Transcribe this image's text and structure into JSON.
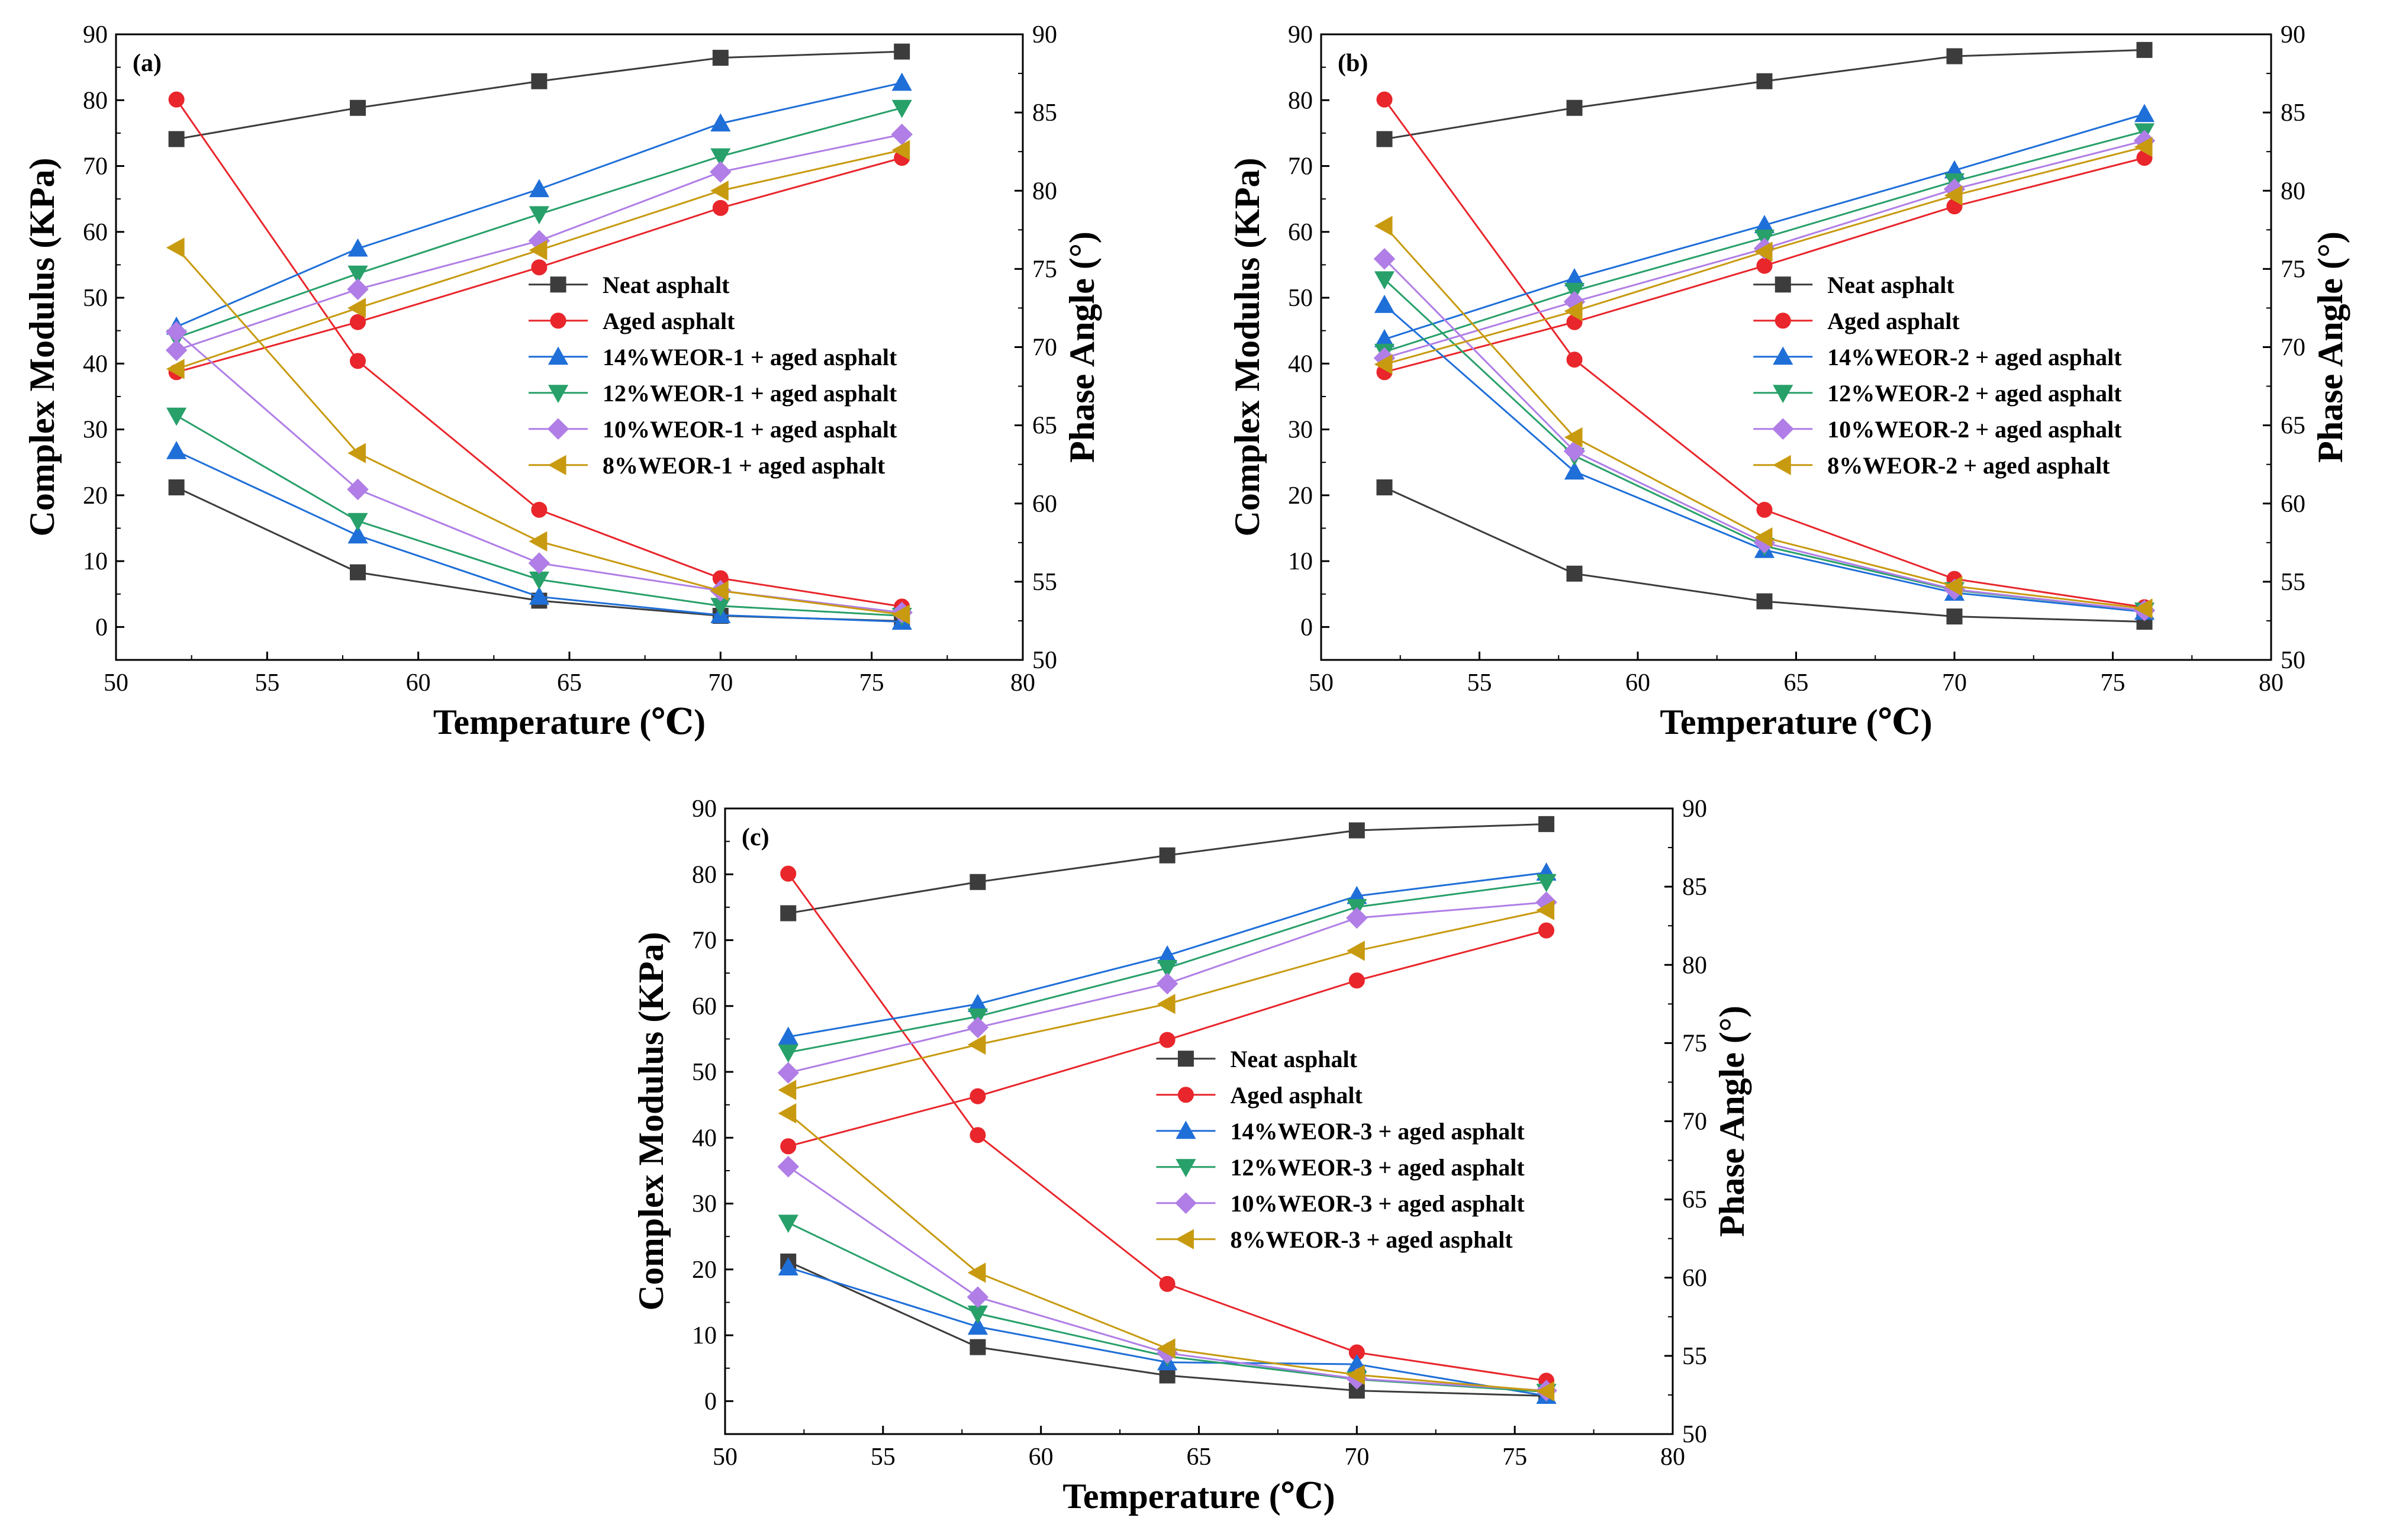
{
  "chart_data": [
    {
      "type": "line",
      "panel_label": "(a)",
      "xlabel": "Temperature (℃)",
      "ylabel": "Complex Modulus (KPa)",
      "y2label": "Phase Angle (°)",
      "xlim": [
        50,
        80
      ],
      "ylim": [
        -5,
        90
      ],
      "y2lim": [
        50,
        90
      ],
      "xticks": [
        "50",
        "55",
        "60",
        "65",
        "70",
        "75",
        "80"
      ],
      "yticks": [
        "0",
        "10",
        "20",
        "30",
        "40",
        "50",
        "60",
        "70",
        "80",
        "90"
      ],
      "y2ticks": [
        "50",
        "55",
        "60",
        "65",
        "70",
        "75",
        "80",
        "85",
        "90"
      ],
      "legend_position": "center-right",
      "x": [
        52,
        58,
        64,
        70,
        76
      ],
      "series": [
        {
          "name": "Neat asphalt",
          "color": "#3c3c3c",
          "marker": "square",
          "modulus": [
            21.2,
            8.3,
            4.0,
            1.7,
            0.9
          ],
          "phase": [
            83.3,
            85.3,
            87.0,
            88.5,
            88.9
          ]
        },
        {
          "name": "Aged asphalt",
          "color": "#e8262b",
          "marker": "circle",
          "modulus": [
            80.1,
            40.4,
            17.8,
            7.4,
            3.1
          ],
          "phase": [
            68.4,
            71.6,
            75.1,
            78.9,
            82.1
          ]
        },
        {
          "name": "14%WEOR-1 + aged asphalt",
          "color": "#1f6fd8",
          "marker": "triangle-up",
          "modulus": [
            26.7,
            13.9,
            4.6,
            1.8,
            0.8
          ],
          "phase": [
            71.3,
            76.3,
            80.1,
            84.3,
            86.9
          ]
        },
        {
          "name": "12%WEOR-1 + aged asphalt",
          "color": "#28a06a",
          "marker": "triangle-down",
          "modulus": [
            32.1,
            16.1,
            7.2,
            3.2,
            1.7
          ],
          "phase": [
            70.6,
            74.7,
            78.5,
            82.2,
            85.3
          ]
        },
        {
          "name": "10%WEOR-1 + aged asphalt",
          "color": "#b07ee6",
          "marker": "diamond",
          "modulus": [
            44.8,
            20.9,
            9.7,
            5.5,
            2.2
          ],
          "phase": [
            69.8,
            73.7,
            76.8,
            81.2,
            83.6
          ]
        },
        {
          "name": "8%WEOR-1 + aged asphalt",
          "color": "#c89a10",
          "marker": "triangle-left",
          "modulus": [
            57.6,
            26.4,
            13.0,
            5.5,
            1.9
          ],
          "phase": [
            68.6,
            72.5,
            76.2,
            80.0,
            82.6
          ]
        }
      ]
    },
    {
      "type": "line",
      "panel_label": "(b)",
      "xlabel": "Temperature (℃)",
      "ylabel": "Complex Modulus (KPa)",
      "y2label": "Phase Angle (°)",
      "xlim": [
        50,
        80
      ],
      "ylim": [
        -5,
        90
      ],
      "y2lim": [
        50,
        90
      ],
      "xticks": [
        "50",
        "55",
        "60",
        "65",
        "70",
        "75",
        "80"
      ],
      "yticks": [
        "0",
        "10",
        "20",
        "30",
        "40",
        "50",
        "60",
        "70",
        "80",
        "90"
      ],
      "y2ticks": [
        "50",
        "55",
        "60",
        "65",
        "70",
        "75",
        "80",
        "85",
        "90"
      ],
      "legend_position": "center-right",
      "x": [
        52,
        58,
        64,
        70,
        76
      ],
      "series": [
        {
          "name": "Neat asphalt",
          "color": "#3c3c3c",
          "marker": "square",
          "modulus": [
            21.2,
            8.1,
            3.9,
            1.6,
            0.8
          ],
          "phase": [
            83.3,
            85.3,
            87.0,
            88.6,
            89.0
          ]
        },
        {
          "name": "Aged asphalt",
          "color": "#e8262b",
          "marker": "circle",
          "modulus": [
            80.1,
            40.6,
            17.8,
            7.3,
            3.0
          ],
          "phase": [
            68.4,
            71.6,
            75.2,
            79.0,
            82.1
          ]
        },
        {
          "name": "14%WEOR-2 + aged asphalt",
          "color": "#1f6fd8",
          "marker": "triangle-up",
          "modulus": [
            48.9,
            23.6,
            11.7,
            5.2,
            2.3
          ],
          "phase": [
            70.5,
            74.4,
            77.8,
            81.3,
            84.9
          ]
        },
        {
          "name": "12%WEOR-2 + aged asphalt",
          "color": "#28a06a",
          "marker": "triangle-down",
          "modulus": [
            52.8,
            26.0,
            12.3,
            5.6,
            2.5
          ],
          "phase": [
            69.7,
            73.6,
            77.0,
            80.6,
            83.8
          ]
        },
        {
          "name": "10%WEOR-2 + aged asphalt",
          "color": "#b07ee6",
          "marker": "diamond",
          "modulus": [
            55.9,
            26.7,
            12.8,
            5.7,
            2.5
          ],
          "phase": [
            69.3,
            72.9,
            76.3,
            80.1,
            83.2
          ]
        },
        {
          "name": "8%WEOR-2 + aged asphalt",
          "color": "#c89a10",
          "marker": "triangle-left",
          "modulus": [
            60.9,
            28.8,
            13.6,
            6.2,
            2.8
          ],
          "phase": [
            68.9,
            72.3,
            76.1,
            79.7,
            82.8
          ]
        }
      ]
    },
    {
      "type": "line",
      "panel_label": "(c)",
      "xlabel": "Temperature (℃)",
      "ylabel": "Complex Modulus (KPa)",
      "y2label": "Phase Angle (°)",
      "xlim": [
        50,
        80
      ],
      "ylim": [
        -5,
        90
      ],
      "y2lim": [
        50,
        90
      ],
      "xticks": [
        "50",
        "55",
        "60",
        "65",
        "70",
        "75",
        "80"
      ],
      "yticks": [
        "0",
        "10",
        "20",
        "30",
        "40",
        "50",
        "60",
        "70",
        "80",
        "90"
      ],
      "y2ticks": [
        "50",
        "55",
        "60",
        "65",
        "70",
        "75",
        "80",
        "85",
        "90"
      ],
      "legend_position": "center-right",
      "x": [
        52,
        58,
        64,
        70,
        76
      ],
      "series": [
        {
          "name": "Neat asphalt",
          "color": "#3c3c3c",
          "marker": "square",
          "modulus": [
            21.2,
            8.2,
            3.9,
            1.6,
            0.8
          ],
          "phase": [
            83.3,
            85.3,
            87.0,
            88.6,
            89.0
          ]
        },
        {
          "name": "Aged asphalt",
          "color": "#e8262b",
          "marker": "circle",
          "modulus": [
            80.1,
            40.4,
            17.8,
            7.4,
            3.1
          ],
          "phase": [
            68.4,
            71.6,
            75.2,
            79.0,
            82.2
          ]
        },
        {
          "name": "14%WEOR-3 + aged asphalt",
          "color": "#1f6fd8",
          "marker": "triangle-up",
          "modulus": [
            20.3,
            11.3,
            5.9,
            5.6,
            0.8
          ],
          "phase": [
            75.4,
            77.5,
            80.6,
            84.4,
            85.9
          ]
        },
        {
          "name": "12%WEOR-3 + aged asphalt",
          "color": "#28a06a",
          "marker": "triangle-down",
          "modulus": [
            27.1,
            13.3,
            6.8,
            3.3,
            1.4
          ],
          "phase": [
            74.4,
            76.7,
            79.8,
            83.7,
            85.3
          ]
        },
        {
          "name": "10%WEOR-3 + aged asphalt",
          "color": "#b07ee6",
          "marker": "diamond",
          "modulus": [
            35.6,
            15.8,
            7.3,
            3.4,
            1.6
          ],
          "phase": [
            73.1,
            76.0,
            78.8,
            83.0,
            84.0
          ]
        },
        {
          "name": "8%WEOR-3 + aged asphalt",
          "color": "#c89a10",
          "marker": "triangle-left",
          "modulus": [
            43.7,
            19.5,
            8.0,
            4.0,
            1.5
          ],
          "phase": [
            72.0,
            74.9,
            77.5,
            80.9,
            83.5
          ]
        }
      ]
    }
  ]
}
